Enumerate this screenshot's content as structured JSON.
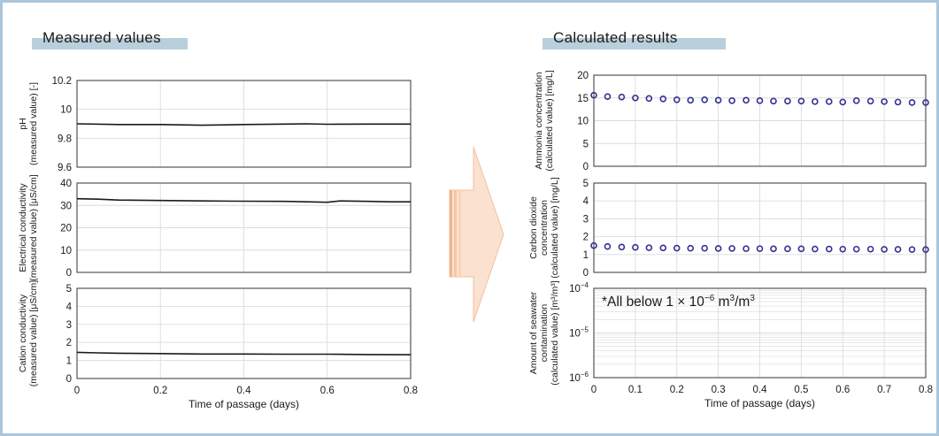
{
  "sections": {
    "measured_title": "Measured values",
    "calculated_title": "Calculated results"
  },
  "colors": {
    "frame": "#a9c6dc",
    "title_bar": "#b9cfdb",
    "line": "#1a1a1a",
    "marker": "#33338f",
    "arrow_fill": "#fbe1cf",
    "arrow_stroke": "#f2c19c",
    "grid": "#dcdcdc"
  },
  "chart_data": [
    {
      "id": "ph",
      "type": "line",
      "section": "measured",
      "ylabel": [
        "pH",
        "(measured value) [-]"
      ],
      "xlabel": "",
      "ylim": [
        9.6,
        10.2
      ],
      "yticks": [
        9.6,
        9.8,
        10,
        10.2
      ],
      "ytick_labels": [
        "9.6",
        "9.8",
        "10",
        "10.2"
      ],
      "xlim": [
        0,
        0.8
      ],
      "xticks": [
        0,
        0.2,
        0.4,
        0.6,
        0.8
      ],
      "xtick_labels": [],
      "grid": true,
      "series": [
        {
          "x": [
            0,
            0.1,
            0.2,
            0.3,
            0.4,
            0.5,
            0.55,
            0.6,
            0.7,
            0.8
          ],
          "y": [
            9.9,
            9.895,
            9.895,
            9.89,
            9.895,
            9.898,
            9.9,
            9.897,
            9.898,
            9.898
          ]
        }
      ]
    },
    {
      "id": "ec",
      "type": "line",
      "section": "measured",
      "ylabel": [
        "Electrical conductivity",
        "(measured value) [μS/cm]"
      ],
      "xlabel": "",
      "ylim": [
        0,
        40
      ],
      "yticks": [
        0,
        10,
        20,
        30,
        40
      ],
      "ytick_labels": [
        "0",
        "10",
        "20",
        "30",
        "40"
      ],
      "xlim": [
        0,
        0.8
      ],
      "xticks": [
        0,
        0.2,
        0.4,
        0.6,
        0.8
      ],
      "xtick_labels": [],
      "grid": true,
      "series": [
        {
          "x": [
            0,
            0.05,
            0.1,
            0.2,
            0.3,
            0.4,
            0.5,
            0.6,
            0.63,
            0.7,
            0.75,
            0.8
          ],
          "y": [
            33.0,
            32.8,
            32.4,
            32.2,
            32.0,
            31.9,
            31.8,
            31.4,
            32.0,
            31.8,
            31.6,
            31.6
          ]
        }
      ]
    },
    {
      "id": "cc",
      "type": "line",
      "section": "measured",
      "ylabel": [
        "Cation conductivity",
        "(measured value) [μS/cm]"
      ],
      "xlabel": "Time of passage (days)",
      "ylim": [
        0,
        5
      ],
      "yticks": [
        0,
        1,
        2,
        3,
        4,
        5
      ],
      "ytick_labels": [
        "0",
        "1",
        "2",
        "3",
        "4",
        "5"
      ],
      "xlim": [
        0,
        0.8
      ],
      "xticks": [
        0,
        0.2,
        0.4,
        0.6,
        0.8
      ],
      "xtick_labels": [
        "0",
        "0.2",
        "0.4",
        "0.6",
        "0.8"
      ],
      "grid": true,
      "series": [
        {
          "x": [
            0,
            0.05,
            0.1,
            0.2,
            0.3,
            0.4,
            0.5,
            0.6,
            0.7,
            0.8
          ],
          "y": [
            1.45,
            1.42,
            1.4,
            1.38,
            1.36,
            1.36,
            1.35,
            1.35,
            1.33,
            1.32
          ]
        }
      ]
    },
    {
      "id": "ammonia",
      "type": "scatter",
      "section": "calculated",
      "ylabel": [
        "Ammonia concentration",
        "(calculated value) [mg/L]"
      ],
      "xlabel": "",
      "ylim": [
        0,
        20
      ],
      "yticks": [
        0,
        5,
        10,
        15,
        20
      ],
      "ytick_labels": [
        "0",
        "5",
        "10",
        "15",
        "20"
      ],
      "xlim": [
        0,
        0.8
      ],
      "xticks": [
        0,
        0.1,
        0.2,
        0.3,
        0.4,
        0.5,
        0.6,
        0.7,
        0.8
      ],
      "xtick_labels": [],
      "grid": true,
      "series": [
        {
          "x": [
            0,
            0.033,
            0.067,
            0.1,
            0.133,
            0.167,
            0.2,
            0.233,
            0.267,
            0.3,
            0.333,
            0.367,
            0.4,
            0.433,
            0.467,
            0.5,
            0.533,
            0.567,
            0.6,
            0.633,
            0.667,
            0.7,
            0.733,
            0.767,
            0.8
          ],
          "y": [
            15.6,
            15.3,
            15.2,
            15.0,
            14.9,
            14.8,
            14.6,
            14.5,
            14.6,
            14.5,
            14.4,
            14.5,
            14.4,
            14.3,
            14.3,
            14.3,
            14.2,
            14.2,
            14.1,
            14.4,
            14.3,
            14.2,
            14.1,
            14.0,
            14.0
          ]
        }
      ]
    },
    {
      "id": "co2",
      "type": "scatter",
      "section": "calculated",
      "ylabel": [
        "Carbon dioxide",
        "concentration",
        "(calculated value) [mg/L]"
      ],
      "xlabel": "",
      "ylim": [
        0,
        5
      ],
      "yticks": [
        0,
        1,
        2,
        3,
        4,
        5
      ],
      "ytick_labels": [
        "0",
        "1",
        "2",
        "3",
        "4",
        "5"
      ],
      "xlim": [
        0,
        0.8
      ],
      "xticks": [
        0,
        0.1,
        0.2,
        0.3,
        0.4,
        0.5,
        0.6,
        0.7,
        0.8
      ],
      "xtick_labels": [],
      "grid": true,
      "series": [
        {
          "x": [
            0,
            0.033,
            0.067,
            0.1,
            0.133,
            0.167,
            0.2,
            0.233,
            0.267,
            0.3,
            0.333,
            0.367,
            0.4,
            0.433,
            0.467,
            0.5,
            0.533,
            0.567,
            0.6,
            0.633,
            0.667,
            0.7,
            0.733,
            0.767,
            0.8
          ],
          "y": [
            1.5,
            1.45,
            1.42,
            1.4,
            1.38,
            1.37,
            1.36,
            1.35,
            1.35,
            1.34,
            1.34,
            1.33,
            1.33,
            1.32,
            1.32,
            1.32,
            1.31,
            1.31,
            1.3,
            1.3,
            1.3,
            1.29,
            1.29,
            1.28,
            1.28
          ]
        }
      ]
    },
    {
      "id": "seawater",
      "type": "line",
      "section": "calculated",
      "scale": "log",
      "ylabel": [
        "Amount of seawater",
        "contamination",
        "(calculated value) [m³/m³]"
      ],
      "xlabel": "Time of passage (days)",
      "ylim": [
        1e-06,
        0.0001
      ],
      "ytick_labels": [
        {
          "base": "10",
          "exp": "−6"
        },
        {
          "base": "10",
          "exp": "−5"
        },
        {
          "base": "10",
          "exp": "−4"
        }
      ],
      "xlim": [
        0,
        0.8
      ],
      "xticks": [
        0,
        0.1,
        0.2,
        0.3,
        0.4,
        0.5,
        0.6,
        0.7,
        0.8
      ],
      "xtick_labels": [
        "0",
        "0.1",
        "0.2",
        "0.3",
        "0.4",
        "0.5",
        "0.6",
        "0.7",
        "0.8"
      ],
      "grid": true,
      "annotation": {
        "prefix": "*All below 1 × 10",
        "exp": "−6",
        "mid": " m",
        "exp2": "3",
        "mid2": "/m",
        "exp3": "3"
      },
      "series": []
    }
  ]
}
